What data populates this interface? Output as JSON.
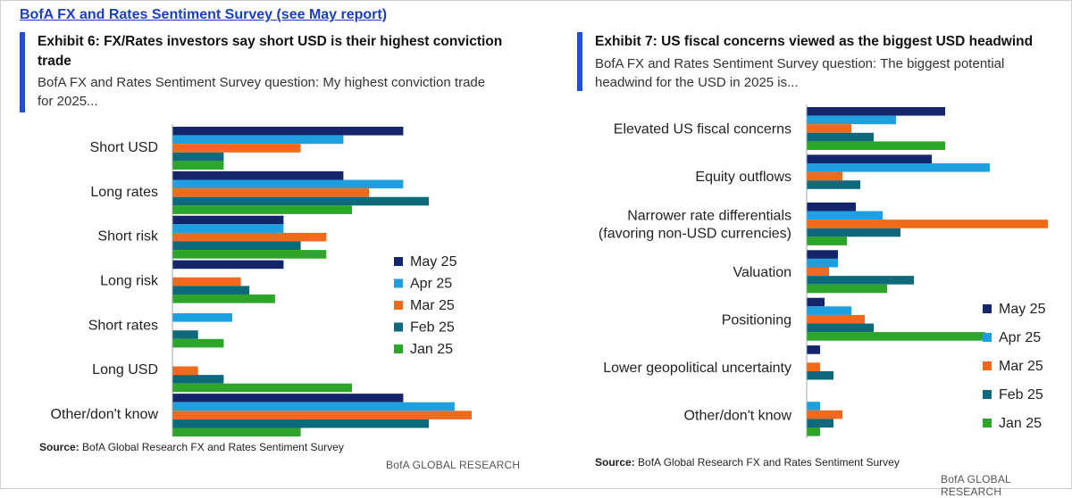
{
  "header": {
    "link_text": "BofA FX and Rates Sentiment Survey (see May report)"
  },
  "exhibit6": {
    "title_line1": "Exhibit 6: FX/Rates investors say short USD is their highest conviction",
    "title_line2": "trade",
    "subtitle_line1": "BofA FX and Rates Sentiment Survey question: My highest conviction trade",
    "subtitle_line2": "for 2025...",
    "source_label": "Source:",
    "source_text": " BofA Global Research FX and Rates Sentiment Survey",
    "brand": "BofA GLOBAL RESEARCH"
  },
  "exhibit7": {
    "title": "Exhibit 7: US fiscal concerns viewed as the biggest USD headwind",
    "subtitle_line1": "BofA FX and Rates Sentiment Survey question: The biggest potential",
    "subtitle_line2": "headwind for the USD in 2025 is...",
    "source_label": "Source:",
    "source_text": " BofA Global Research FX and Rates Sentiment Survey",
    "brand": "BofA GLOBAL RESEARCH"
  },
  "chart_data": [
    {
      "type": "bar",
      "orientation": "horizontal",
      "categories": [
        [
          "Short USD"
        ],
        [
          "Long rates"
        ],
        [
          "Short risk"
        ],
        [
          "Long risk"
        ],
        [
          "Short rates"
        ],
        [
          "Long USD"
        ],
        [
          "Other/don't know"
        ]
      ],
      "xlim": [
        0,
        35
      ],
      "grid": false,
      "legend_position": "right",
      "series": [
        {
          "name": "May 25",
          "color": "#14256b",
          "values": [
            27,
            20,
            13,
            13,
            0,
            0,
            27
          ]
        },
        {
          "name": "Apr 25",
          "color": "#1ea0e0",
          "values": [
            20,
            27,
            13,
            0,
            7,
            0,
            33
          ]
        },
        {
          "name": "Mar 25",
          "color": "#f06a1c",
          "values": [
            15,
            23,
            18,
            8,
            0,
            3,
            35
          ]
        },
        {
          "name": "Feb 25",
          "color": "#0e6a7a",
          "values": [
            6,
            30,
            15,
            9,
            3,
            6,
            30
          ]
        },
        {
          "name": "Jan 25",
          "color": "#2ca52a",
          "values": [
            6,
            21,
            18,
            12,
            6,
            21,
            15
          ]
        }
      ]
    },
    {
      "type": "bar",
      "orientation": "horizontal",
      "categories": [
        [
          "Elevated US fiscal concerns"
        ],
        [
          "Equity outflows"
        ],
        [
          "Narrower rate differentials",
          "(favoring non-USD currencies)"
        ],
        [
          "Valuation"
        ],
        [
          "Positioning"
        ],
        [
          "Lower geopolitical uncertainty"
        ],
        [
          "Other/don't know"
        ]
      ],
      "xlim": [
        0,
        55
      ],
      "grid": false,
      "legend_position": "bottom-right",
      "series": [
        {
          "name": "May 25",
          "color": "#14256b",
          "values": [
            31,
            28,
            11,
            7,
            4,
            3,
            0
          ]
        },
        {
          "name": "Apr 25",
          "color": "#1ea0e0",
          "values": [
            20,
            41,
            17,
            7,
            10,
            0,
            3
          ]
        },
        {
          "name": "Mar 25",
          "color": "#f06a1c",
          "values": [
            10,
            8,
            54,
            5,
            13,
            3,
            8
          ]
        },
        {
          "name": "Feb 25",
          "color": "#0e6a7a",
          "values": [
            15,
            12,
            21,
            24,
            15,
            6,
            6
          ]
        },
        {
          "name": "Jan 25",
          "color": "#2ca52a",
          "values": [
            31,
            0,
            9,
            18,
            40,
            0,
            3
          ]
        }
      ]
    }
  ]
}
